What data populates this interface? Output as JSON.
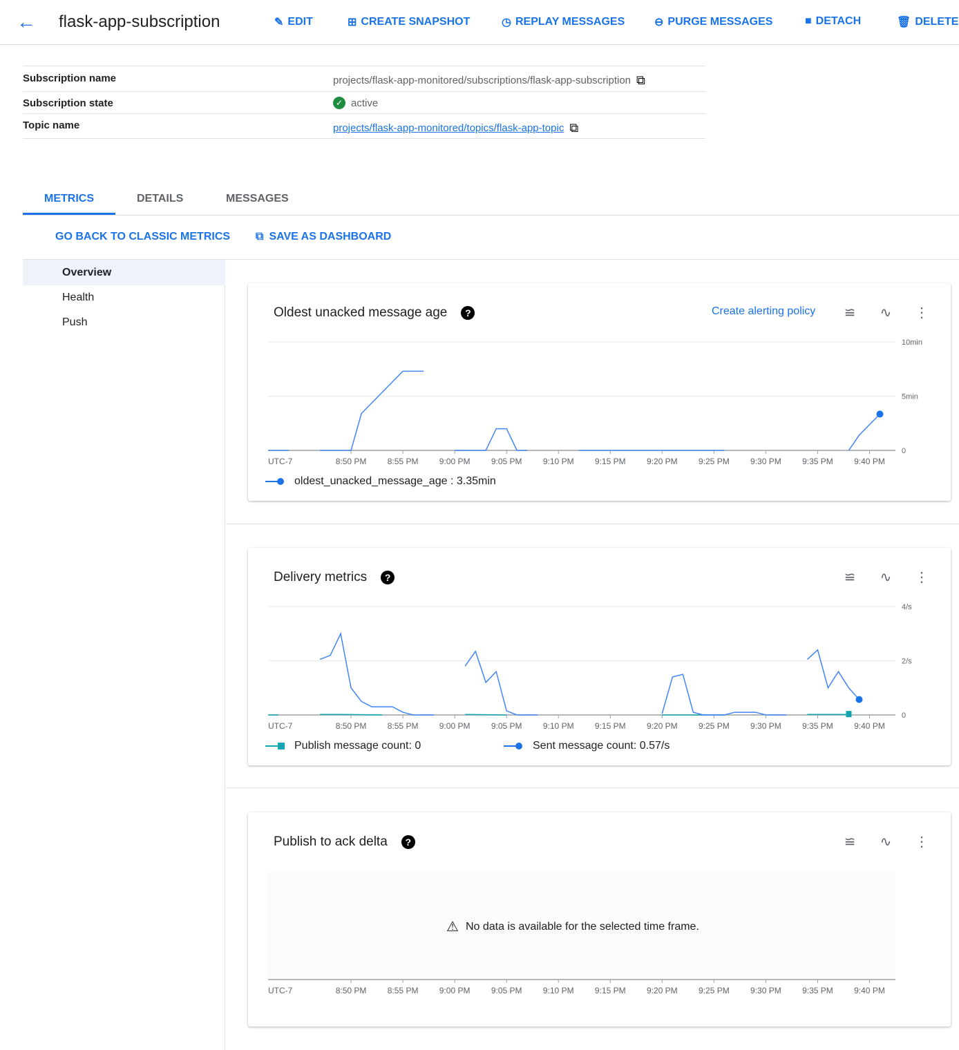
{
  "header": {
    "title": "flask-app-subscription",
    "actions": [
      {
        "label": "EDIT",
        "icon": "pencil-icon"
      },
      {
        "label": "CREATE SNAPSHOT",
        "icon": "snapshot-icon"
      },
      {
        "label": "REPLAY MESSAGES",
        "icon": "clock-icon"
      },
      {
        "label": "PURGE MESSAGES",
        "icon": "minus-circle-icon"
      },
      {
        "label": "DETACH",
        "icon": "stop-icon"
      },
      {
        "label": "DELETE",
        "icon": "trash-icon"
      }
    ]
  },
  "info": {
    "subscription_name_label": "Subscription name",
    "subscription_name": "projects/flask-app-monitored/subscriptions/flask-app-subscription",
    "state_label": "Subscription state",
    "state": "active",
    "topic_label": "Topic name",
    "topic": "projects/flask-app-monitored/topics/flask-app-topic"
  },
  "tabs": [
    {
      "label": "METRICS",
      "active": true
    },
    {
      "label": "DETAILS"
    },
    {
      "label": "MESSAGES"
    }
  ],
  "actions": {
    "classic": "GO BACK TO CLASSIC METRICS",
    "save": "SAVE AS DASHBOARD"
  },
  "sidebar": {
    "items": [
      {
        "label": "Overview",
        "selected": true
      },
      {
        "label": "Health"
      },
      {
        "label": "Push"
      }
    ]
  },
  "colors": {
    "accent": "#1a73e8",
    "sent": "#4285f4",
    "publish": "#12a4af"
  },
  "alert_link": "Create alerting policy",
  "no_data": "No data is available for the selected time frame.",
  "chart_data": [
    {
      "type": "line",
      "title": "Oldest unacked message age",
      "timezone": "UTC-7",
      "x_ticks": [
        "8:50 PM",
        "8:55 PM",
        "9:00 PM",
        "9:05 PM",
        "9:10 PM",
        "9:15 PM",
        "9:20 PM",
        "9:25 PM",
        "9:30 PM",
        "9:35 PM",
        "9:40 PM"
      ],
      "y_ticks": [
        "0",
        "5min",
        "10min"
      ],
      "ylim": [
        0,
        10
      ],
      "xlim": [
        "20:42",
        "21:42.5"
      ],
      "series": [
        {
          "name": "oldest_unacked_message_age",
          "legend_value": "3.35min",
          "segments": [
            [
              [
                "20:42",
                0
              ],
              [
                "20:44",
                0
              ]
            ],
            [
              [
                "20:47",
                0
              ],
              [
                "20:50",
                0
              ],
              [
                "20:51",
                3.4
              ],
              [
                "20:55",
                7.3
              ],
              [
                "20:57",
                7.3
              ]
            ],
            [
              [
                "21:00",
                0
              ],
              [
                "21:03",
                0
              ],
              [
                "21:04",
                2
              ],
              [
                "21:05",
                2
              ],
              [
                "21:06",
                0
              ],
              [
                "21:07",
                0
              ]
            ],
            [
              [
                "21:12",
                0
              ],
              [
                "21:26",
                0
              ]
            ],
            [
              [
                "21:38",
                0
              ],
              [
                "21:39",
                1.4
              ],
              [
                "21:41",
                3.35
              ]
            ]
          ]
        }
      ]
    },
    {
      "type": "line",
      "title": "Delivery metrics",
      "timezone": "UTC-7",
      "x_ticks": [
        "8:50 PM",
        "8:55 PM",
        "9:00 PM",
        "9:05 PM",
        "9:10 PM",
        "9:15 PM",
        "9:20 PM",
        "9:25 PM",
        "9:30 PM",
        "9:35 PM",
        "9:40 PM"
      ],
      "y_ticks": [
        "0",
        "2/s",
        "4/s"
      ],
      "ylim": [
        0,
        4
      ],
      "xlim": [
        "20:42",
        "21:42.5"
      ],
      "series": [
        {
          "name": "Publish message count",
          "legend_value": "0",
          "segments": [
            [
              [
                "20:42",
                0
              ],
              [
                "20:43",
                0
              ]
            ],
            [
              [
                "20:47",
                0.02
              ],
              [
                "20:49",
                0.02
              ],
              [
                "20:53",
                0
              ]
            ],
            [
              [
                "21:01",
                0.02
              ],
              [
                "21:05",
                0
              ]
            ],
            [
              [
                "21:20",
                0
              ],
              [
                "21:26",
                0
              ]
            ],
            [
              [
                "21:34",
                0.02
              ],
              [
                "21:38",
                0.02
              ]
            ]
          ]
        },
        {
          "name": "Sent message count",
          "legend_value": "0.57/s",
          "segments": [
            [
              [
                "20:47",
                2.05
              ],
              [
                "20:48",
                2.2
              ],
              [
                "20:49",
                3.0
              ],
              [
                "20:50",
                1.0
              ],
              [
                "20:51",
                0.5
              ],
              [
                "20:52",
                0.3
              ],
              [
                "20:54",
                0.3
              ],
              [
                "20:55",
                0.1
              ],
              [
                "20:56",
                0
              ],
              [
                "20:58",
                0
              ]
            ],
            [
              [
                "21:01",
                1.8
              ],
              [
                "21:02",
                2.35
              ],
              [
                "21:03",
                1.2
              ],
              [
                "21:04",
                1.6
              ],
              [
                "21:05",
                0.15
              ],
              [
                "21:06",
                0
              ],
              [
                "21:08",
                0
              ]
            ],
            [
              [
                "21:20",
                0.05
              ],
              [
                "21:21",
                1.4
              ],
              [
                "21:22",
                1.5
              ],
              [
                "21:23",
                0.1
              ],
              [
                "21:24",
                0
              ],
              [
                "21:26",
                0
              ],
              [
                "21:27",
                0.1
              ],
              [
                "21:29",
                0.1
              ],
              [
                "21:30",
                0
              ],
              [
                "21:32",
                0
              ]
            ],
            [
              [
                "21:34",
                2.05
              ],
              [
                "21:35",
                2.4
              ],
              [
                "21:36",
                1.0
              ],
              [
                "21:37",
                1.6
              ],
              [
                "21:38",
                1.0
              ],
              [
                "21:39",
                0.57
              ]
            ]
          ]
        }
      ]
    },
    {
      "type": "line",
      "title": "Publish to ack delta",
      "timezone": "UTC-7",
      "x_ticks": [
        "8:50 PM",
        "8:55 PM",
        "9:00 PM",
        "9:05 PM",
        "9:10 PM",
        "9:15 PM",
        "9:20 PM",
        "9:25 PM",
        "9:30 PM",
        "9:35 PM",
        "9:40 PM"
      ],
      "series": []
    }
  ]
}
